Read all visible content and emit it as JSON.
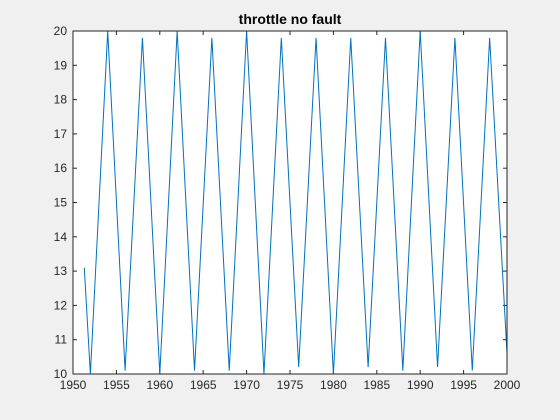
{
  "chart_data": {
    "type": "line",
    "title": "throttle no fault",
    "xlabel": "",
    "ylabel": "",
    "xlim": [
      1950,
      2000
    ],
    "ylim": [
      10,
      20
    ],
    "xticks": [
      1950,
      1955,
      1960,
      1965,
      1970,
      1975,
      1980,
      1985,
      1990,
      1995,
      2000
    ],
    "yticks": [
      10,
      11,
      12,
      13,
      14,
      15,
      16,
      17,
      18,
      19,
      20
    ],
    "grid": false,
    "colors": {
      "line": "#0072BD",
      "axes": "#262626",
      "plot_bg": "#ffffff",
      "figure_bg": "#f0f0f0"
    },
    "series": [
      {
        "x": [
          1951.3,
          1952.0,
          1954.0,
          1956.0,
          1958.0,
          1960.0,
          1962.0,
          1964.0,
          1966.0,
          1968.0,
          1970.0,
          1972.0,
          1974.0,
          1976.0,
          1978.0,
          1980.0,
          1982.0,
          1984.0,
          1986.0,
          1988.0,
          1990.0,
          1992.0,
          1994.0,
          1996.0,
          1998.0,
          2000.0
        ],
        "values": [
          13.1,
          10.0,
          20.0,
          10.1,
          19.8,
          10.0,
          20.0,
          10.1,
          19.8,
          10.1,
          20.0,
          10.0,
          19.8,
          10.2,
          19.8,
          10.0,
          19.8,
          10.2,
          19.8,
          10.1,
          20.0,
          10.2,
          19.8,
          10.1,
          19.8,
          10.6
        ]
      }
    ]
  }
}
